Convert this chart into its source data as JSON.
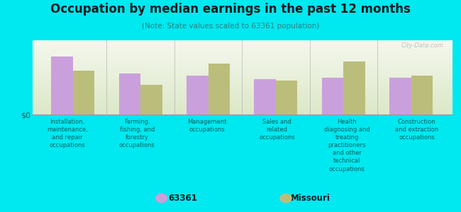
{
  "title": "Occupation by median earnings in the past 12 months",
  "subtitle": "(Note: State values scaled to 63361 population)",
  "categories": [
    "Installation,\nmaintenance,\nand repair\noccupations",
    "Farming,\nfishing, and\nforestry\noccupations",
    "Management\noccupations",
    "Sales and\nrelated\noccupations",
    "Health\ndiagnosing and\ntreating\npractitioners\nand other\ntechnical\noccupations",
    "Construction\nand extraction\noccupations"
  ],
  "values_63361": [
    0.82,
    0.58,
    0.55,
    0.5,
    0.52,
    0.52
  ],
  "values_missouri": [
    0.62,
    0.42,
    0.72,
    0.48,
    0.75,
    0.55
  ],
  "color_63361": "#c9a0dc",
  "color_missouri": "#bbbe7a",
  "background_color": "#00e8f0",
  "plot_bg_top": "#e8f0d8",
  "plot_bg_bottom": "#f5f8ee",
  "title_color": "#1a1a1a",
  "subtitle_color": "#2a8080",
  "label_color": "#006060",
  "ylabel": "$0",
  "legend_label_1": "63361",
  "legend_label_2": "Missouri",
  "watermark": "City-Data.com",
  "bar_width": 0.32,
  "ylim": [
    0,
    1.05
  ]
}
